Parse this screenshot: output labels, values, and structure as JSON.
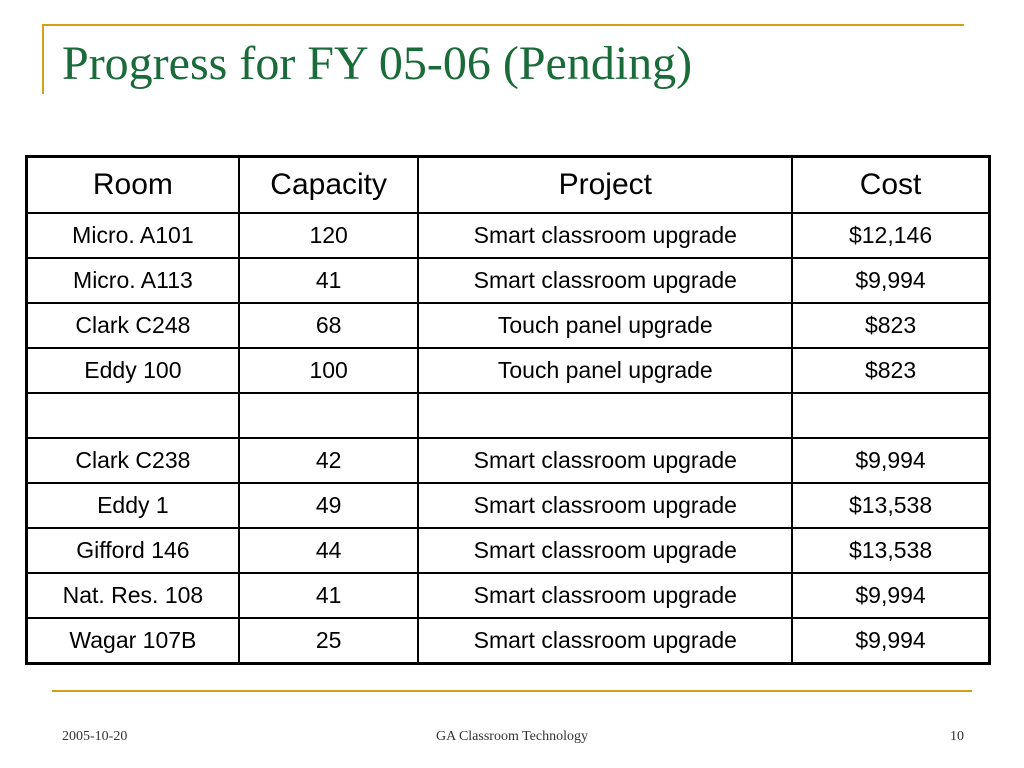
{
  "slide": {
    "title": "Progress for FY 05-06 (Pending)",
    "accent_color": "#d4a017",
    "title_color": "#1a6b3a"
  },
  "table": {
    "headers": [
      "Room",
      "Capacity",
      "Project",
      "Cost"
    ],
    "rows": [
      [
        "Micro. A101",
        "120",
        "Smart classroom upgrade",
        "$12,146"
      ],
      [
        "Micro. A113",
        "41",
        "Smart classroom upgrade",
        "$9,994"
      ],
      [
        "Clark C248",
        "68",
        "Touch panel upgrade",
        "$823"
      ],
      [
        "Eddy 100",
        "100",
        "Touch panel upgrade",
        "$823"
      ],
      [
        "",
        "",
        "",
        ""
      ],
      [
        "Clark C238",
        "42",
        "Smart classroom upgrade",
        "$9,994"
      ],
      [
        "Eddy 1",
        "49",
        "Smart classroom upgrade",
        "$13,538"
      ],
      [
        "Gifford 146",
        "44",
        "Smart classroom upgrade",
        "$13,538"
      ],
      [
        "Nat. Res. 108",
        "41",
        "Smart classroom upgrade",
        "$9,994"
      ],
      [
        "Wagar 107B",
        "25",
        "Smart classroom upgrade",
        "$9,994"
      ]
    ]
  },
  "footer": {
    "date": "2005-10-20",
    "center": "GA Classroom Technology",
    "page": "10"
  }
}
